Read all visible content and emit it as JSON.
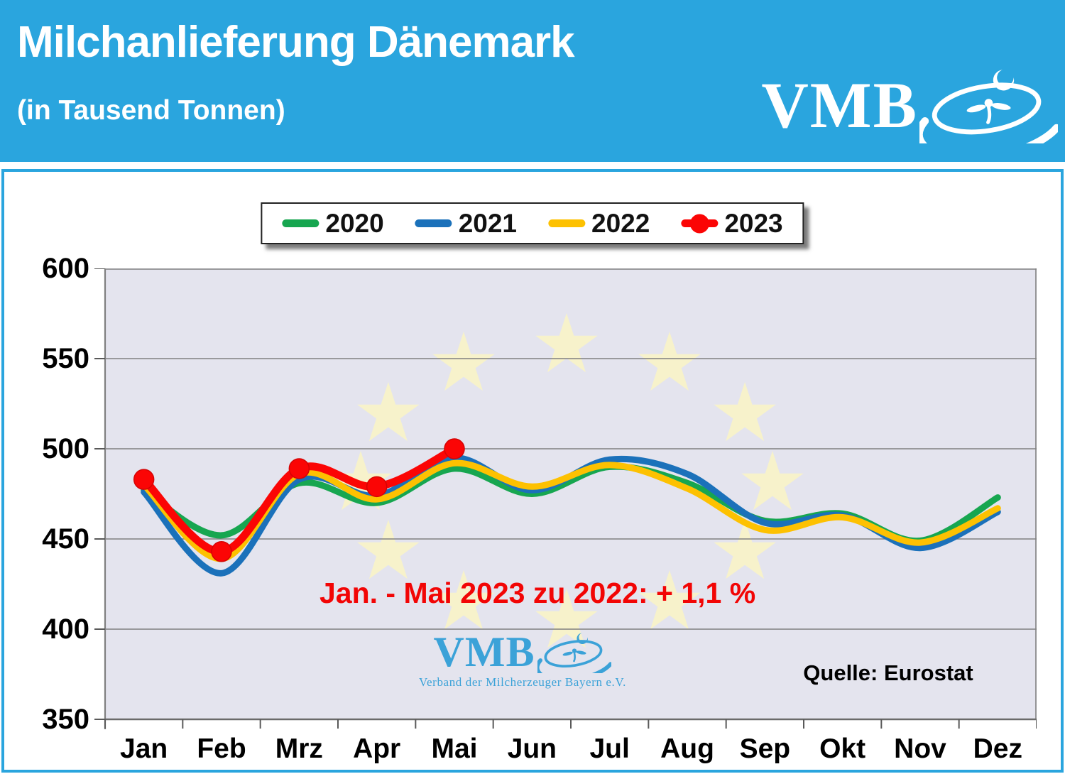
{
  "header": {
    "title": "Milchanlieferung Dänemark",
    "subtitle": "(in Tausend Tonnen)",
    "logo_text": "VMB",
    "accent_color": "#2aa5de"
  },
  "watermark": {
    "logo_text": "VMB",
    "caption": "Verband der Milcherzeuger Bayern e.V.",
    "color": "#3ba2d8"
  },
  "chart_data": {
    "type": "line",
    "title": "Milchanlieferung Dänemark",
    "subtitle": "(in Tausend Tonnen)",
    "unit": "Tausend Tonnen",
    "categories": [
      "Jan",
      "Feb",
      "Mrz",
      "Apr",
      "Mai",
      "Jun",
      "Jul",
      "Aug",
      "Sep",
      "Okt",
      "Nov",
      "Dez"
    ],
    "yticks": [
      600,
      550,
      500,
      450,
      400,
      350
    ],
    "ylim": [
      350,
      600
    ],
    "grid": true,
    "legend_position": "top",
    "plot_bg_color": "#e4e4ee",
    "grid_color": "#808080",
    "star_color": "#f7f2cb",
    "series": [
      {
        "name": "2020",
        "color": "#17a650",
        "line_width": 9,
        "marker": false,
        "values": [
          477,
          452,
          481,
          470,
          489,
          475,
          490,
          481,
          460,
          464,
          449,
          473
        ]
      },
      {
        "name": "2021",
        "color": "#1b71ba",
        "line_width": 9,
        "marker": false,
        "values": [
          476,
          431,
          483,
          474,
          495,
          477,
          494,
          486,
          459,
          463,
          445,
          465
        ]
      },
      {
        "name": "2022",
        "color": "#fdc101",
        "line_width": 9,
        "marker": false,
        "values": [
          480,
          439,
          486,
          472,
          492,
          479,
          491,
          478,
          455,
          462,
          448,
          467
        ]
      },
      {
        "name": "2023",
        "color": "#fb0505",
        "line_width": 11,
        "marker": true,
        "marker_edge_color": "#d40404",
        "values": [
          483,
          443,
          489,
          479,
          500,
          null,
          null,
          null,
          null,
          null,
          null,
          null
        ]
      }
    ],
    "annotation": "Jan. - Mai 2023 zu 2022: + 1,1 %",
    "source": "Quelle: Eurostat"
  }
}
